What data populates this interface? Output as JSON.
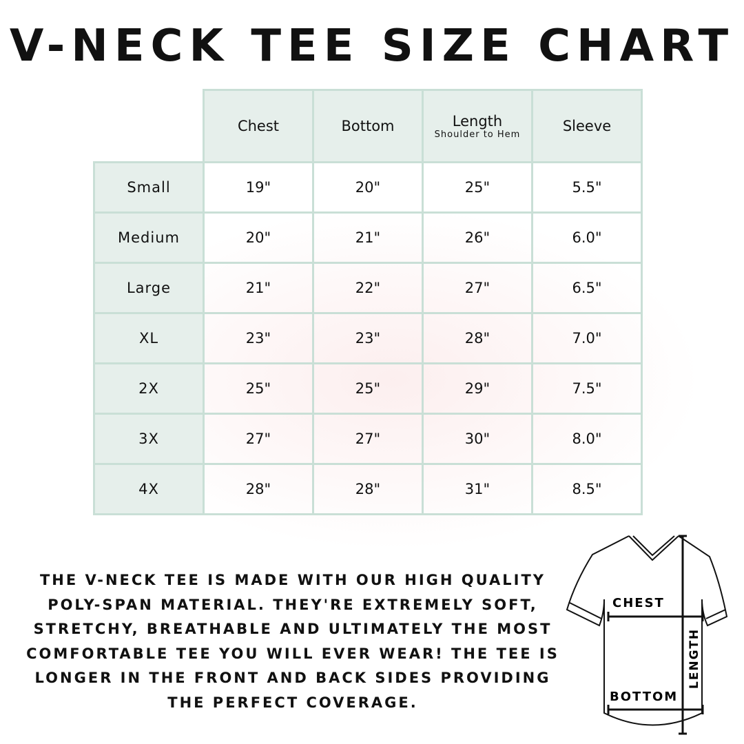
{
  "title": "V-NECK TEE SIZE CHART",
  "table": {
    "headers": [
      {
        "label": "Chest",
        "sub": ""
      },
      {
        "label": "Bottom",
        "sub": ""
      },
      {
        "label": "Length",
        "sub": "Shoulder to Hem"
      },
      {
        "label": "Sleeve",
        "sub": ""
      }
    ],
    "rows": [
      {
        "size": "Small",
        "chest": "19\"",
        "bottom": "20\"",
        "length": "25\"",
        "sleeve": "5.5\""
      },
      {
        "size": "Medium",
        "chest": "20\"",
        "bottom": "21\"",
        "length": "26\"",
        "sleeve": "6.0\""
      },
      {
        "size": "Large",
        "chest": "21\"",
        "bottom": "22\"",
        "length": "27\"",
        "sleeve": "6.5\""
      },
      {
        "size": "XL",
        "chest": "23\"",
        "bottom": "23\"",
        "length": "28\"",
        "sleeve": "7.0\""
      },
      {
        "size": "2X",
        "chest": "25\"",
        "bottom": "25\"",
        "length": "29\"",
        "sleeve": "7.5\""
      },
      {
        "size": "3X",
        "chest": "27\"",
        "bottom": "27\"",
        "length": "30\"",
        "sleeve": "8.0\""
      },
      {
        "size": "4X",
        "chest": "28\"",
        "bottom": "28\"",
        "length": "31\"",
        "sleeve": "8.5\""
      }
    ]
  },
  "description": "The V-neck tee is made with our high quality poly-span material. They're extremely soft, stretchy, breathable and ultimately the most comfortable tee you will ever wear! The tee is longer in the front and back sides providing the perfect coverage.",
  "diagram": {
    "chest": "CHEST",
    "bottom": "BOTTOM",
    "length": "LENGTH"
  },
  "colors": {
    "border": "#c9dfd6",
    "header_bg": "#e6efeb"
  }
}
